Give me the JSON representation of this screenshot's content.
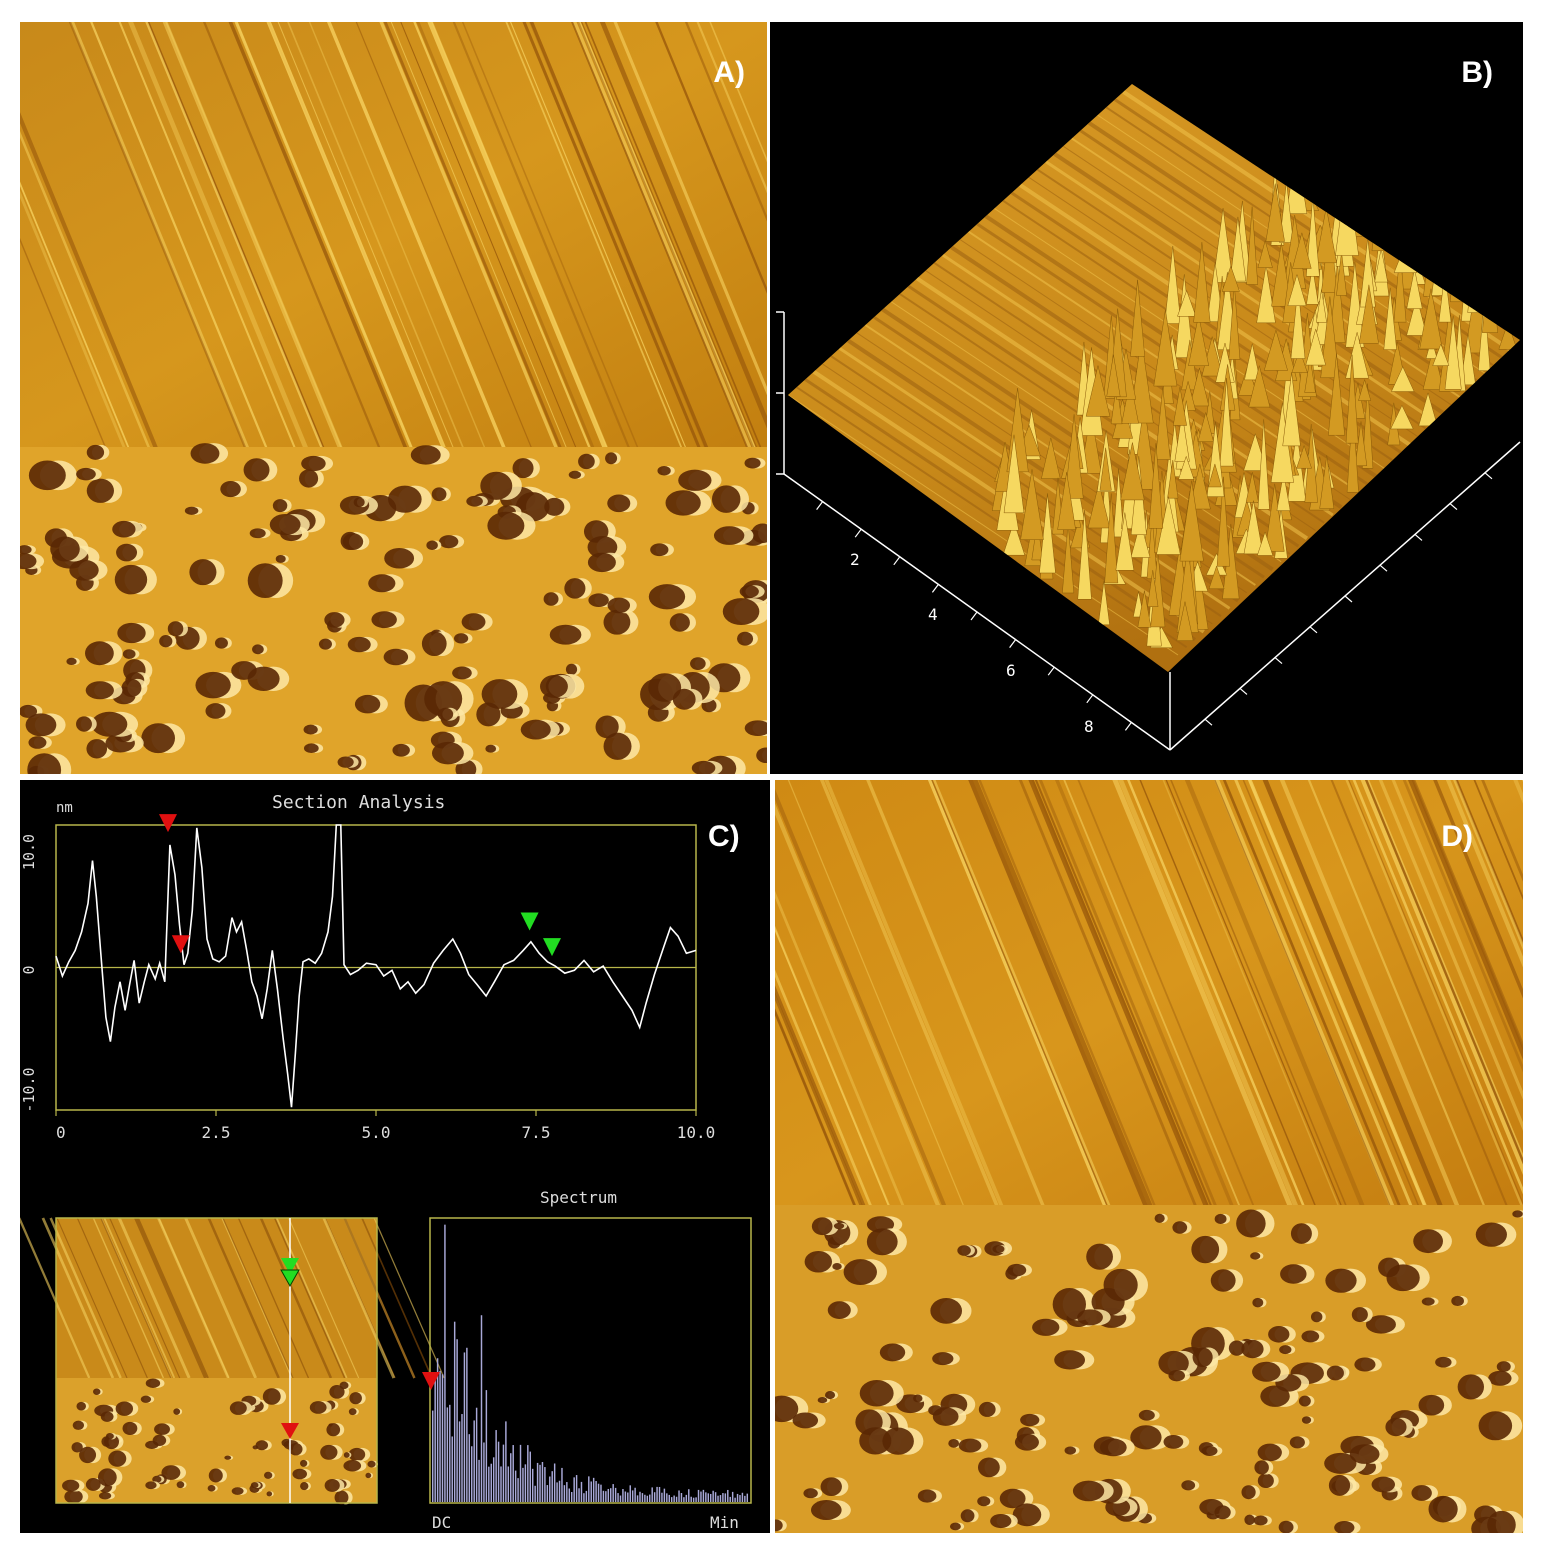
{
  "panels": {
    "a": {
      "label": "A)"
    },
    "b": {
      "label": "B)",
      "axis_ticks": [
        "2",
        "4",
        "6",
        "8"
      ]
    },
    "c": {
      "label": "C)"
    },
    "d": {
      "label": "D)"
    }
  },
  "colors": {
    "afm_base": "#c98a12",
    "afm_light": "#f6d261",
    "afm_dark": "#7a3d05",
    "plot_frame": "#b8b64a",
    "profile_line": "#ffffff",
    "marker_red": "#e01010",
    "marker_green": "#22dd22",
    "spectrum_bars": "#a9a9d8"
  },
  "section_analysis": {
    "title": "Section Analysis",
    "unit": "nm",
    "y_ticks": [
      "10.0",
      "0",
      "-10.0"
    ],
    "x_ticks": [
      "0",
      "2.5",
      "5.0",
      "7.5",
      "10.0"
    ],
    "xlim": [
      0,
      10
    ],
    "ylim": [
      -10,
      10
    ],
    "profile": [
      [
        0.0,
        0.8
      ],
      [
        0.1,
        -0.6
      ],
      [
        0.2,
        0.4
      ],
      [
        0.3,
        1.2
      ],
      [
        0.4,
        2.5
      ],
      [
        0.5,
        4.5
      ],
      [
        0.57,
        7.5
      ],
      [
        0.63,
        5.0
      ],
      [
        0.7,
        1.0
      ],
      [
        0.78,
        -3.5
      ],
      [
        0.85,
        -5.2
      ],
      [
        0.92,
        -2.8
      ],
      [
        1.0,
        -1.0
      ],
      [
        1.08,
        -3.0
      ],
      [
        1.15,
        -1.2
      ],
      [
        1.22,
        0.5
      ],
      [
        1.3,
        -2.5
      ],
      [
        1.38,
        -1.0
      ],
      [
        1.45,
        0.2
      ],
      [
        1.55,
        -0.8
      ],
      [
        1.62,
        0.3
      ],
      [
        1.7,
        -1.0
      ],
      [
        1.78,
        8.6
      ],
      [
        1.86,
        6.5
      ],
      [
        1.93,
        3.0
      ],
      [
        2.0,
        0.2
      ],
      [
        2.06,
        1.0
      ],
      [
        2.13,
        4.0
      ],
      [
        2.2,
        9.8
      ],
      [
        2.28,
        7.0
      ],
      [
        2.36,
        2.0
      ],
      [
        2.45,
        0.6
      ],
      [
        2.55,
        0.4
      ],
      [
        2.65,
        0.8
      ],
      [
        2.75,
        3.5
      ],
      [
        2.82,
        2.5
      ],
      [
        2.9,
        3.2
      ],
      [
        2.98,
        1.2
      ],
      [
        3.06,
        -1.0
      ],
      [
        3.14,
        -2.0
      ],
      [
        3.22,
        -3.6
      ],
      [
        3.3,
        -1.5
      ],
      [
        3.38,
        1.2
      ],
      [
        3.46,
        -1.5
      ],
      [
        3.55,
        -5.0
      ],
      [
        3.62,
        -7.5
      ],
      [
        3.68,
        -9.8
      ],
      [
        3.74,
        -6.0
      ],
      [
        3.8,
        -2.0
      ],
      [
        3.86,
        0.4
      ],
      [
        3.95,
        0.6
      ],
      [
        4.05,
        0.3
      ],
      [
        4.15,
        1.0
      ],
      [
        4.25,
        2.5
      ],
      [
        4.32,
        5.0
      ],
      [
        4.38,
        10.0
      ],
      [
        4.45,
        10.0
      ],
      [
        4.5,
        0.2
      ],
      [
        4.6,
        -0.5
      ],
      [
        4.72,
        -0.2
      ],
      [
        4.85,
        0.3
      ],
      [
        5.0,
        0.2
      ],
      [
        5.12,
        -0.6
      ],
      [
        5.25,
        -0.2
      ],
      [
        5.38,
        -1.5
      ],
      [
        5.5,
        -1.0
      ],
      [
        5.62,
        -1.8
      ],
      [
        5.75,
        -1.2
      ],
      [
        5.9,
        0.3
      ],
      [
        6.05,
        1.2
      ],
      [
        6.2,
        2.0
      ],
      [
        6.32,
        1.0
      ],
      [
        6.45,
        -0.5
      ],
      [
        6.58,
        -1.2
      ],
      [
        6.72,
        -2.0
      ],
      [
        6.85,
        -1.0
      ],
      [
        7.0,
        0.2
      ],
      [
        7.15,
        0.5
      ],
      [
        7.3,
        1.2
      ],
      [
        7.42,
        1.8
      ],
      [
        7.55,
        1.0
      ],
      [
        7.68,
        0.4
      ],
      [
        7.8,
        0.1
      ],
      [
        7.95,
        -0.4
      ],
      [
        8.1,
        -0.2
      ],
      [
        8.25,
        0.5
      ],
      [
        8.4,
        -0.3
      ],
      [
        8.55,
        0.1
      ],
      [
        8.7,
        -1.0
      ],
      [
        8.85,
        -2.0
      ],
      [
        9.0,
        -3.0
      ],
      [
        9.12,
        -4.2
      ],
      [
        9.22,
        -2.5
      ],
      [
        9.35,
        -0.5
      ],
      [
        9.5,
        1.5
      ],
      [
        9.6,
        2.8
      ],
      [
        9.72,
        2.2
      ],
      [
        9.85,
        1.0
      ],
      [
        10.0,
        1.2
      ]
    ],
    "markers": [
      {
        "color": "red",
        "x": 1.75,
        "y": 9.5
      },
      {
        "color": "red",
        "x": 1.95,
        "y": 1.0
      },
      {
        "color": "green",
        "x": 7.4,
        "y": 2.6
      },
      {
        "color": "green",
        "x": 7.75,
        "y": 0.8
      }
    ]
  },
  "spectrum": {
    "title": "Spectrum",
    "x_start_label": "DC",
    "x_end_label": "Min"
  }
}
